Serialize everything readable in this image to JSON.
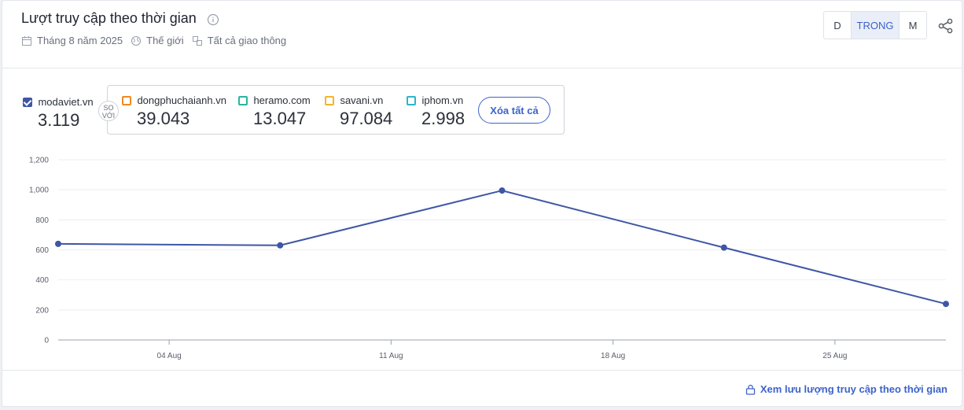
{
  "header": {
    "title": "Lượt truy cập theo thời gian",
    "meta": {
      "period": "Tháng 8 năm 2025",
      "region": "Thế giới",
      "traffic": "Tất cả giao thông"
    },
    "granularity": {
      "d": "D",
      "w": "TRONG",
      "m": "M",
      "selected": "TRONG"
    }
  },
  "main_site": {
    "name": "modaviet.vn",
    "value": "3.119",
    "checked": true,
    "color": "#3f56a6"
  },
  "versus_label": "SO VỚI",
  "competitors": [
    {
      "name": "dongphuchaianh.vn",
      "value": "39.043",
      "color": "#f08a24"
    },
    {
      "name": "heramo.com",
      "value": "13.047",
      "color": "#2bb5a0"
    },
    {
      "name": "savani.vn",
      "value": "97.084",
      "color": "#f2b52c"
    },
    {
      "name": "iphom.vn",
      "value": "2.998",
      "color": "#2cb6c8"
    }
  ],
  "clear_all_label": "Xóa tất cả",
  "footer_link": "Xem lưu lượng truy cập theo thời gian",
  "chart_data": {
    "type": "line",
    "title": "",
    "xlabel": "",
    "ylabel": "",
    "ylim": [
      0,
      1200
    ],
    "yticks": [
      "0",
      "200",
      "400",
      "600",
      "800",
      "1,000",
      "1,200"
    ],
    "xticks": [
      "04 Aug",
      "11 Aug",
      "18 Aug",
      "25 Aug"
    ],
    "grid": true,
    "series": [
      {
        "color": "#3f56a6",
        "points": [
          {
            "x": "2025-07-28",
            "y": 640
          },
          {
            "x": "2025-08-04",
            "y": 630
          },
          {
            "x": "2025-08-11",
            "y": 995
          },
          {
            "x": "2025-08-18",
            "y": 615
          },
          {
            "x": "2025-08-25",
            "y": 240
          }
        ]
      }
    ]
  }
}
